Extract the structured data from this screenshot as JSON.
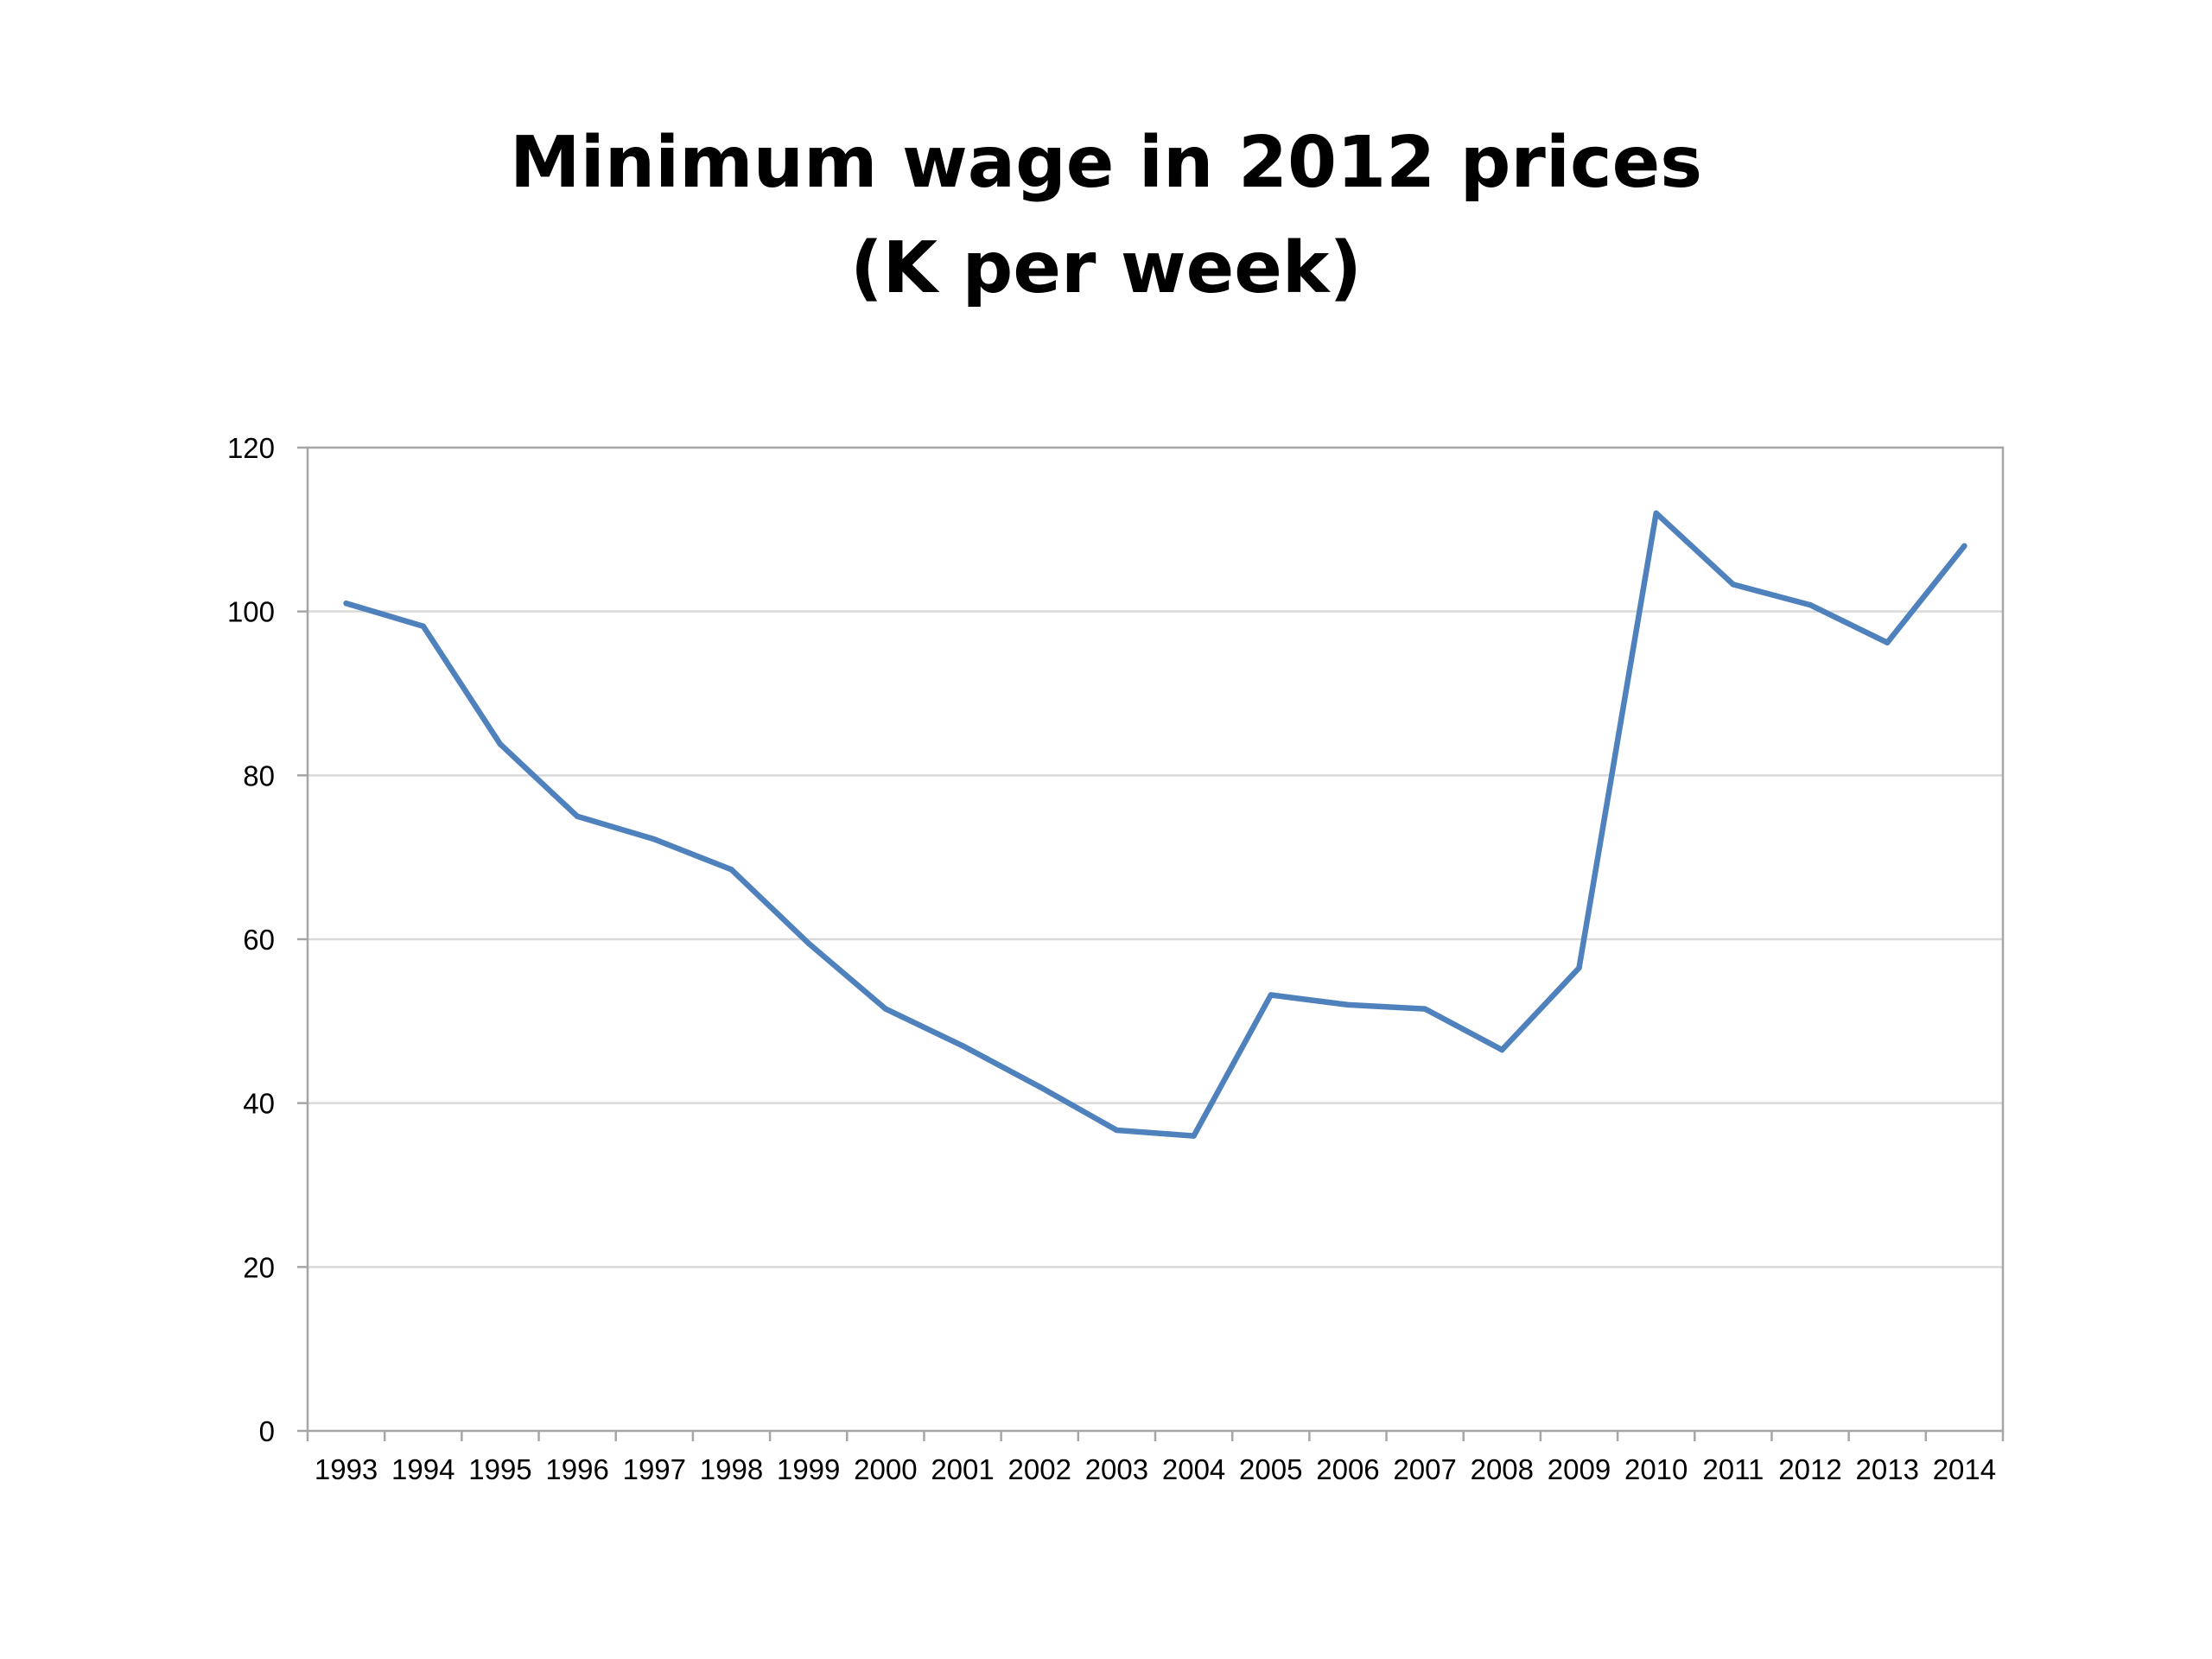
{
  "chart_data": {
    "type": "line",
    "title": "Minimum wage in 2012 prices",
    "subtitle": "(K per week)",
    "xlabel": "",
    "ylabel": "",
    "categories": [
      "1993",
      "1994",
      "1995",
      "1996",
      "1997",
      "1998",
      "1999",
      "2000",
      "2001",
      "2002",
      "2003",
      "2004",
      "2005",
      "2006",
      "2007",
      "2008",
      "2009",
      "2010",
      "2011",
      "2012",
      "2013",
      "2014"
    ],
    "series": [
      {
        "values": [
          101,
          98.2,
          83.8,
          75,
          72.2,
          68.5,
          59.5,
          51.5,
          47,
          42,
          36.7,
          36,
          53.2,
          52,
          51.5,
          46.5,
          56.5,
          112,
          103.3,
          100.8,
          96.2,
          108
        ]
      }
    ],
    "ylim": [
      0,
      120
    ],
    "yticks": [
      0,
      20,
      40,
      60,
      80,
      100,
      120
    ],
    "grid": true,
    "legend": "none",
    "colors": {
      "line": "#4F81BD",
      "grid": "#D9D9D9",
      "axis": "#A6A6A6"
    }
  }
}
